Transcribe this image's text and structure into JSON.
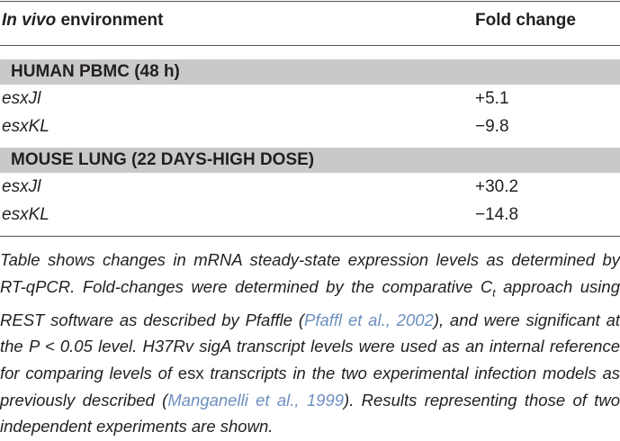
{
  "table": {
    "header": {
      "col1_italic": "In vivo",
      "col1_rest": "environment",
      "col2": "Fold change"
    },
    "groups": [
      {
        "title": "HUMAN PBMC (48 h)",
        "rows": [
          [
            "esxJl",
            "+5.1"
          ],
          [
            "esxKL",
            "−9.8"
          ]
        ]
      },
      {
        "title": "MOUSE LUNG (22 DAYS-HIGH DOSE)",
        "rows": [
          [
            "esxJl",
            "+30.2"
          ],
          [
            "esxKL",
            "−14.8"
          ]
        ]
      }
    ]
  },
  "footnote": [
    {
      "text": "Table shows changes in mRNA steady-state expression levels as determined by RT-qPCR. Fold-changes were determined by the comparative ",
      "style": "italic"
    },
    {
      "text": "C",
      "style": "italic"
    },
    {
      "text": "t",
      "style": "sub"
    },
    {
      "text": " approach using REST software as described by Pfaffle (",
      "style": "italic"
    },
    {
      "text": "Pfaffl et al., 2002",
      "style": "link"
    },
    {
      "text": "), and were significant at the ",
      "style": "italic"
    },
    {
      "text": "P",
      "style": "italic"
    },
    {
      "text": " < 0.05 level. H37Rv sigA transcript levels were used as an internal reference for comparing levels of ",
      "style": "italic"
    },
    {
      "text": "esx",
      "style": "upright"
    },
    {
      "text": " transcripts in the two experimental infection models as previously described (",
      "style": "italic"
    },
    {
      "text": "Manganelli et al., 1999",
      "style": "link"
    },
    {
      "text": "). Results representing those of two independent experiments are shown.",
      "style": "italic"
    }
  ]
}
